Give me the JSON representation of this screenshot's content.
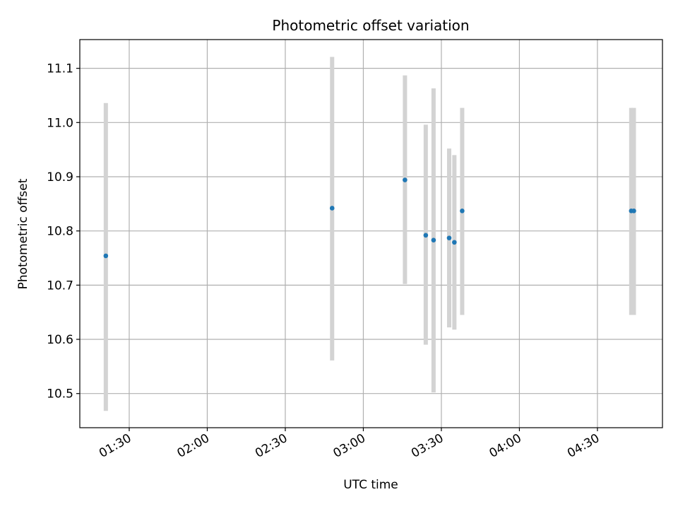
{
  "chart_data": {
    "type": "scatter",
    "title": "Photometric offset variation",
    "xlabel": "UTC time",
    "ylabel": "Photometric offset",
    "x_is_time": true,
    "xlim": [
      "01:11",
      "04:55"
    ],
    "ylim": [
      10.437,
      11.153
    ],
    "x_ticks": [
      "01:30",
      "02:00",
      "02:30",
      "03:00",
      "03:30",
      "04:00",
      "04:30"
    ],
    "y_ticks": [
      10.5,
      10.6,
      10.7,
      10.8,
      10.9,
      11.0,
      11.1
    ],
    "y_tick_labels": [
      "10.5",
      "10.6",
      "10.7",
      "10.8",
      "10.9",
      "11.0",
      "11.1"
    ],
    "grid": true,
    "point_color": "#1f77b4",
    "errorbar_color": "#d3d3d3",
    "points": [
      {
        "x": "01:21",
        "y": 10.754,
        "yerr": [
          10.468,
          11.036
        ]
      },
      {
        "x": "02:48",
        "y": 10.842,
        "yerr": [
          10.561,
          11.121
        ]
      },
      {
        "x": "03:16",
        "y": 10.894,
        "yerr": [
          10.702,
          11.087
        ]
      },
      {
        "x": "03:24",
        "y": 10.792,
        "yerr": [
          10.59,
          10.996
        ]
      },
      {
        "x": "03:27",
        "y": 10.783,
        "yerr": [
          10.502,
          11.063
        ]
      },
      {
        "x": "03:33",
        "y": 10.787,
        "yerr": [
          10.622,
          10.952
        ]
      },
      {
        "x": "03:35",
        "y": 10.779,
        "yerr": [
          10.618,
          10.94
        ]
      },
      {
        "x": "03:38",
        "y": 10.837,
        "yerr": [
          10.645,
          11.027
        ]
      },
      {
        "x": "04:43",
        "y": 10.837,
        "yerr": [
          10.645,
          11.027
        ]
      },
      {
        "x": "04:44",
        "y": 10.837,
        "yerr": [
          10.645,
          11.027
        ]
      }
    ]
  }
}
